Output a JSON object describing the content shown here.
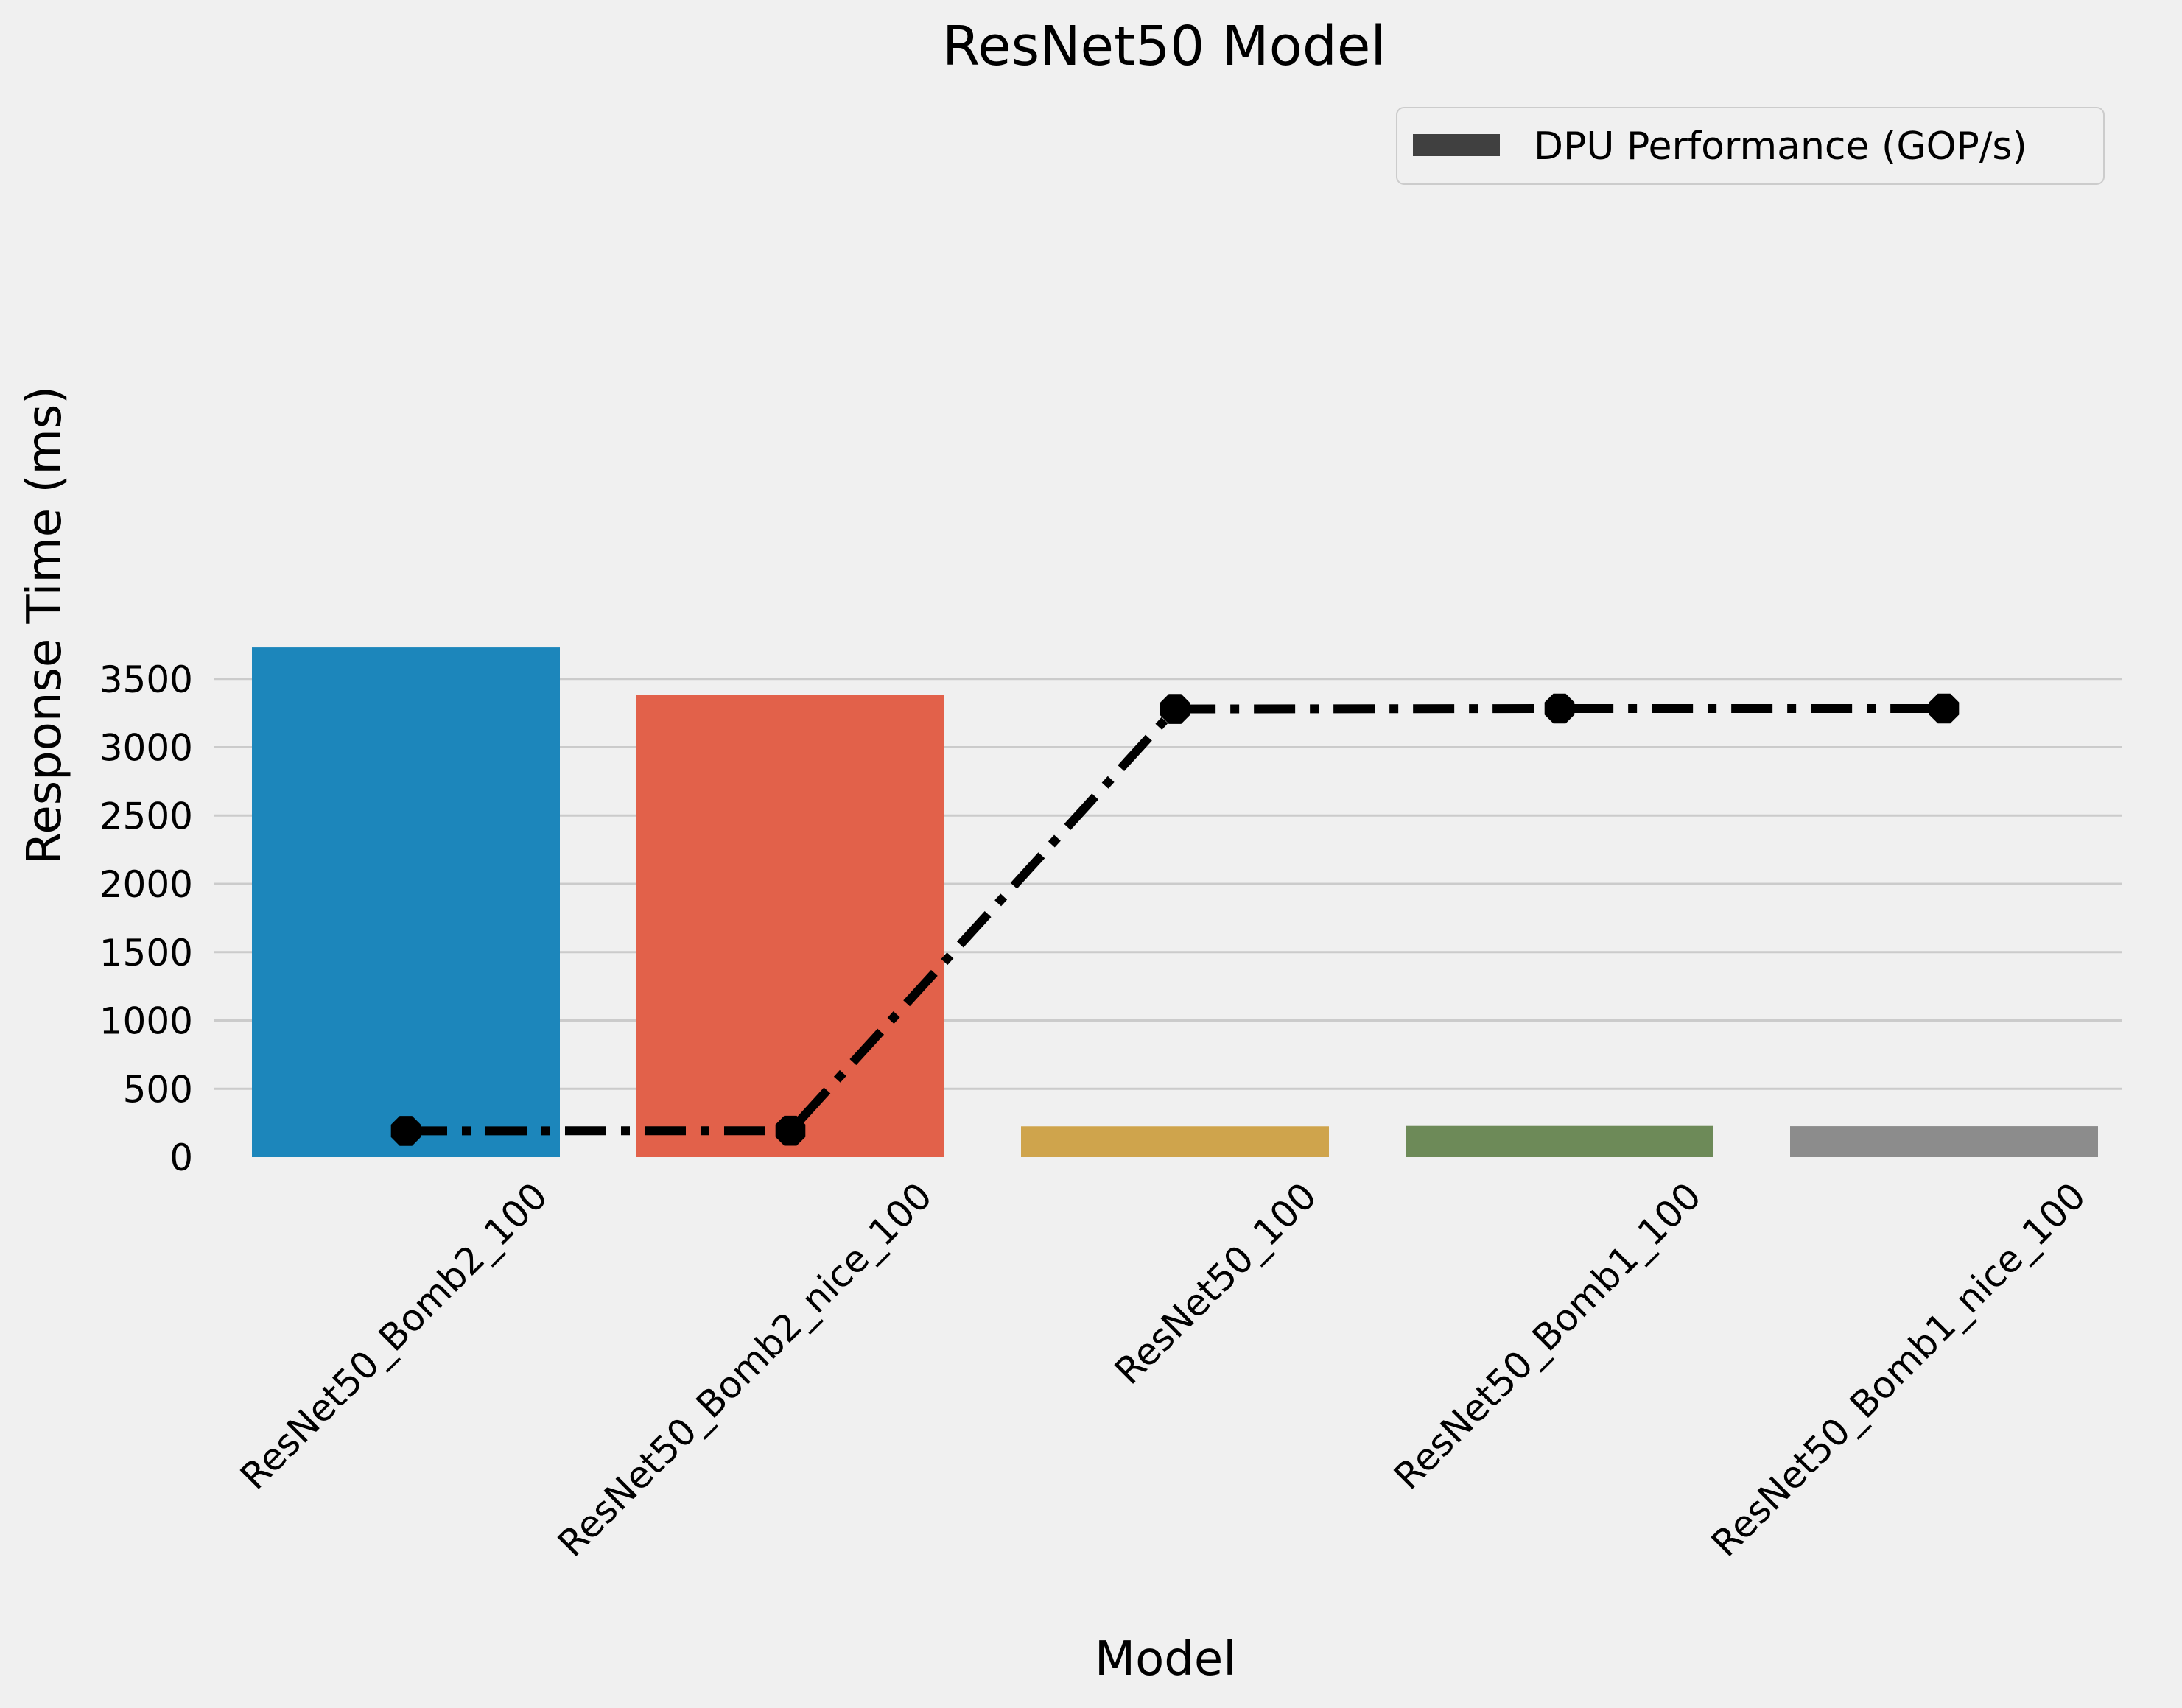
{
  "chart_data": {
    "type": "bar",
    "title": "ResNet50 Model",
    "xlabel": "Model",
    "ylabel": "Response Time (ms)",
    "ylim": [
      0,
      3750
    ],
    "yticks": [
      0,
      500,
      1000,
      1500,
      2000,
      2500,
      3000,
      3500
    ],
    "grid": "horizontal",
    "legend_placement": "top-right",
    "categories": [
      "ResNet50_Bomb2_100",
      "ResNet50_Bomb2_nice_100",
      "ResNet50_100",
      "ResNet50_Bomb1_100",
      "ResNet50_Bomb1_nice_100"
    ],
    "bar_series": {
      "values": [
        3730,
        3385,
        225,
        228,
        226
      ],
      "colors": [
        "#1c86bb",
        "#e2614a",
        "#cfa44c",
        "#6d8a58",
        "#8c8c8c"
      ]
    },
    "line_series": {
      "name": "DPU Performance (GOP/s)",
      "values": [
        192,
        193,
        3280,
        3283,
        3283
      ],
      "color": "#000000",
      "legend_swatch_color": "#404040",
      "linestyle": "dash-dot",
      "marker": "octagon"
    }
  }
}
